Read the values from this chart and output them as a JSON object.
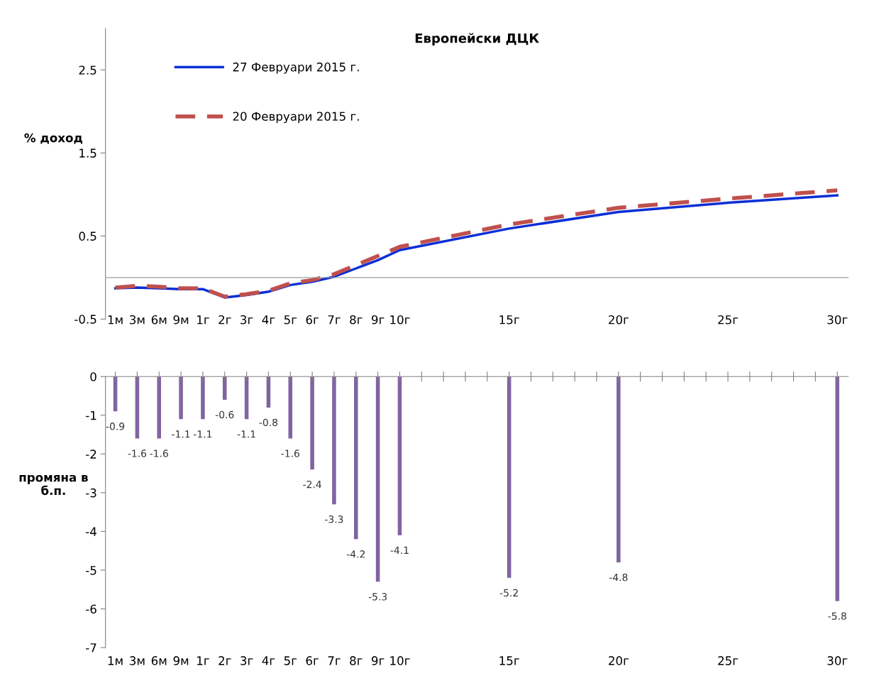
{
  "chart_data": [
    {
      "type": "line",
      "title": "Европейски ДЦК",
      "ylabel": "% доход",
      "categories": [
        "1м",
        "3м",
        "6м",
        "9м",
        "1г",
        "2г",
        "3г",
        "4г",
        "5г",
        "6г",
        "7г",
        "8г",
        "9г",
        "10г",
        null,
        null,
        null,
        null,
        "15г",
        null,
        null,
        null,
        null,
        "20г",
        null,
        null,
        null,
        null,
        "25г",
        null,
        null,
        null,
        null,
        "30г"
      ],
      "series": [
        {
          "name": "27 Февруари 2015 г.",
          "color": "#0b2fd6",
          "line_style": "solid",
          "values": [
            -0.13,
            -0.12,
            -0.13,
            -0.14,
            -0.14,
            -0.24,
            -0.21,
            -0.17,
            -0.09,
            -0.05,
            0.01,
            0.11,
            0.21,
            0.33,
            null,
            null,
            null,
            null,
            0.59,
            null,
            null,
            null,
            null,
            0.79,
            null,
            null,
            null,
            null,
            0.9,
            null,
            null,
            null,
            null,
            0.99
          ]
        },
        {
          "name": "20 Февруари 2015 г.",
          "color": "#c0504d",
          "line_style": "dashed",
          "values": [
            -0.12,
            -0.1,
            -0.11,
            -0.13,
            -0.13,
            -0.23,
            -0.2,
            -0.16,
            -0.07,
            -0.03,
            0.04,
            0.15,
            0.26,
            0.37,
            null,
            null,
            null,
            null,
            0.64,
            null,
            null,
            null,
            null,
            0.84,
            null,
            null,
            null,
            null,
            0.95,
            null,
            null,
            null,
            null,
            1.05
          ]
        }
      ],
      "ylim": [
        -0.5,
        3
      ],
      "yticks": [
        -0.5,
        0.5,
        1.5,
        2.5
      ],
      "legend": "top left",
      "grid": false
    },
    {
      "type": "bar",
      "ylabel": "промяна в\nб.п.",
      "categories": [
        "1м",
        "3м",
        "6м",
        "9м",
        "1г",
        "2г",
        "3г",
        "4г",
        "5г",
        "6г",
        "7г",
        "8г",
        "9г",
        "10г",
        null,
        null,
        null,
        null,
        "15г",
        null,
        null,
        null,
        null,
        "20г",
        null,
        null,
        null,
        null,
        "25г",
        null,
        null,
        null,
        null,
        "30г"
      ],
      "values": [
        -0.9,
        -1.6,
        -1.6,
        -1.1,
        -1.1,
        -0.6,
        -1.1,
        -0.8,
        -1.6,
        -2.4,
        -3.3,
        -4.2,
        -5.3,
        -4.1,
        null,
        null,
        null,
        null,
        -5.2,
        null,
        null,
        null,
        null,
        -4.8,
        null,
        null,
        null,
        null,
        null,
        null,
        null,
        null,
        null,
        -5.8
      ],
      "color": "#8064a2",
      "data_labels": true,
      "ylim": [
        -7,
        0
      ],
      "yticks": [
        -7,
        -6,
        -5,
        -4,
        -3,
        -2,
        -1,
        0
      ],
      "grid": false
    }
  ]
}
